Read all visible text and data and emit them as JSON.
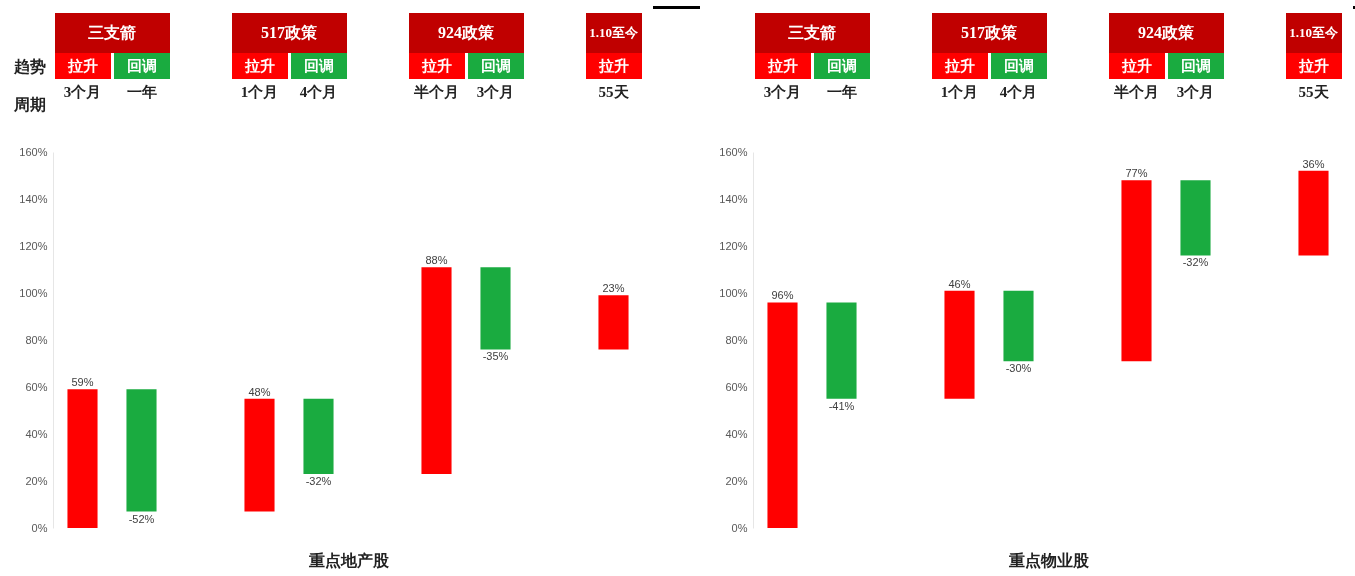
{
  "chart_data": [
    {
      "type": "bar",
      "xlabel": "重点地产股",
      "categories": [
        "拉升",
        "回调",
        null,
        "拉升",
        "回调",
        null,
        "拉升",
        "回调",
        null,
        "拉升"
      ],
      "values": [
        59,
        -52,
        null,
        48,
        -32,
        null,
        88,
        -35,
        null,
        23
      ],
      "base": [
        0,
        59,
        null,
        7,
        55,
        null,
        23,
        111,
        null,
        76
      ],
      "colors": [
        "#ff0000",
        "#1aab40",
        null,
        "#ff0000",
        "#1aab40",
        null,
        "#ff0000",
        "#1aab40",
        null,
        "#ff0000"
      ],
      "value_labels": [
        "59%",
        "-52%",
        null,
        "48%",
        "-32%",
        null,
        "88%",
        "-35%",
        null,
        "23%"
      ],
      "ylim": [
        0,
        160
      ],
      "yticks": [
        {
          "value": 0,
          "label": "0%"
        },
        {
          "value": 20,
          "label": "20%"
        },
        {
          "value": 40,
          "label": "40%"
        },
        {
          "value": 60,
          "label": "60%"
        },
        {
          "value": 80,
          "label": "80%"
        },
        {
          "value": 100,
          "label": "100%"
        },
        {
          "value": 120,
          "label": "120%"
        },
        {
          "value": 140,
          "label": "140%"
        },
        {
          "value": 160,
          "label": "160%"
        }
      ],
      "annotations": [
        "趋势",
        "周期",
        "三支箭",
        "517政策",
        "924政策",
        "1.10至今",
        "3个月",
        "一年",
        "1个月",
        "4个月",
        "半个月",
        "3个月",
        "55天"
      ]
    },
    {
      "type": "bar",
      "xlabel": "重点物业股",
      "categories": [
        "拉升",
        "回调",
        null,
        "拉升",
        "回调",
        null,
        "拉升",
        "回调",
        null,
        "拉升"
      ],
      "values": [
        96,
        -41,
        null,
        46,
        -30,
        null,
        77,
        -32,
        null,
        36
      ],
      "base": [
        0,
        96,
        null,
        55,
        101,
        null,
        71,
        148,
        null,
        116
      ],
      "colors": [
        "#ff0000",
        "#1aab40",
        null,
        "#ff0000",
        "#1aab40",
        null,
        "#ff0000",
        "#1aab40",
        null,
        "#ff0000"
      ],
      "value_labels": [
        "96%",
        "-41%",
        null,
        "46%",
        "-30%",
        null,
        "77%",
        "-32%",
        null,
        "36%"
      ],
      "ylim": [
        0,
        160
      ],
      "yticks": [
        {
          "value": 0,
          "label": "0%"
        },
        {
          "value": 20,
          "label": "20%"
        },
        {
          "value": 40,
          "label": "40%"
        },
        {
          "value": 60,
          "label": "60%"
        },
        {
          "value": 80,
          "label": "80%"
        },
        {
          "value": 100,
          "label": "100%"
        },
        {
          "value": 120,
          "label": "120%"
        },
        {
          "value": 140,
          "label": "140%"
        },
        {
          "value": 160,
          "label": "160%"
        }
      ],
      "annotations": [
        "三支箭",
        "517政策",
        "924政策",
        "1.10至今",
        "3个月",
        "一年",
        "1个月",
        "4个月",
        "半个月",
        "3个月",
        "55天"
      ]
    }
  ]
}
